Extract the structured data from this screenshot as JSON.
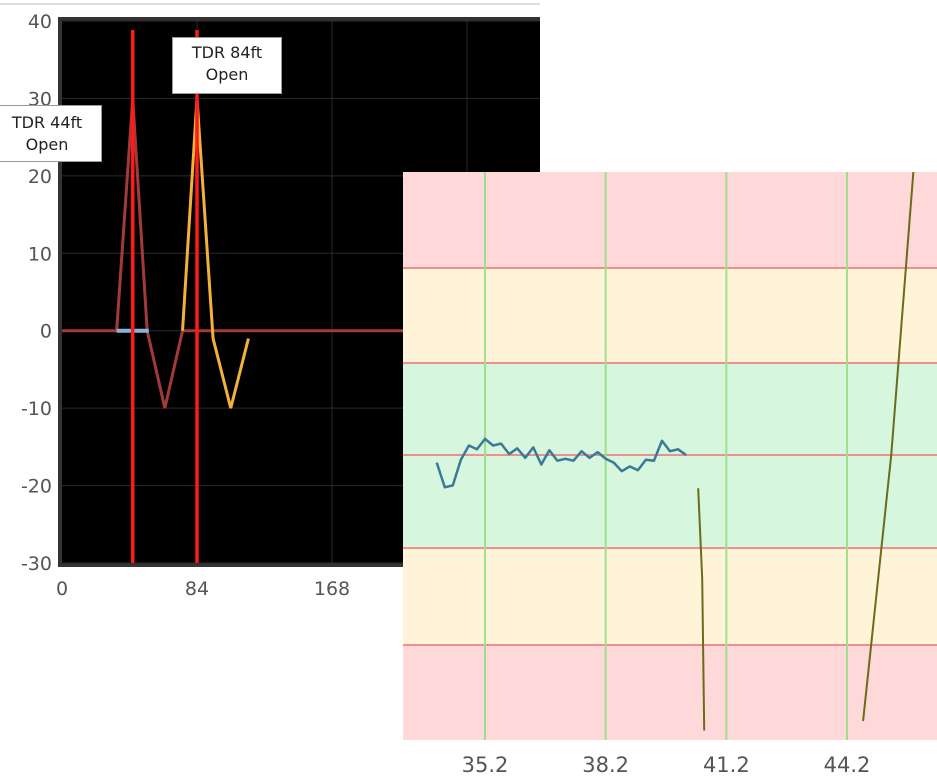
{
  "chart_data": [
    {
      "type": "line",
      "title": "",
      "xlabel": "",
      "ylabel": "",
      "xlim": [
        0,
        250
      ],
      "ylim": [
        -30,
        40
      ],
      "x_ticks": [
        "0",
        "84",
        "168"
      ],
      "y_ticks": [
        "40",
        "30",
        "20",
        "10",
        "0",
        "-10",
        "-20",
        "-30"
      ],
      "grid": true,
      "colors": {
        "background": "#000000",
        "frame": "#333333",
        "grid": "#2a2a2a",
        "marker": "#ff1a1a",
        "baseline": "#8ab4d8"
      },
      "series": [
        {
          "color": "#a33a3a",
          "x": [
            -10,
            34,
            44,
            53,
            64,
            75,
            82,
            250
          ],
          "y": [
            0,
            0,
            30,
            0,
            -10,
            0,
            0,
            0
          ]
        },
        {
          "color": "#f2b13a",
          "x": [
            75,
            84,
            94,
            105,
            116
          ],
          "y": [
            0,
            30,
            -1,
            -10,
            -1
          ]
        },
        {
          "color": "#8ab4d8",
          "x": [
            34,
            54
          ],
          "y": [
            0,
            0
          ]
        }
      ],
      "markers": [
        {
          "x": 44,
          "line1": "TDR 44ft",
          "line2": "Open"
        },
        {
          "x": 84,
          "line1": "TDR 84ft",
          "line2": "Open"
        }
      ]
    },
    {
      "type": "line",
      "title": "",
      "xlabel": "",
      "ylabel": "",
      "xlim": [
        33.6,
        46.9
      ],
      "x_ticks": [
        35.2,
        38.2,
        41.2,
        44.2
      ],
      "x_tick_labels": [
        "35.2",
        "38.2",
        "41.2",
        "44.2"
      ],
      "grid": true,
      "colors": {
        "red_band": "#ffd9d9",
        "yellow_band": "#fff4d8",
        "green_band": "#d6f7dd",
        "band_line": "#ec8f8f",
        "grid_vertical": "#9fe08c",
        "trace": "#3a7a99",
        "ramp": "#6b6b1a"
      },
      "bands": [
        "red",
        "yellow",
        "green",
        "yellow",
        "red"
      ],
      "series": [
        {
          "color": "#3a7a99",
          "x": [
            34.0,
            34.2,
            34.4,
            34.6,
            34.8,
            35.0,
            35.2,
            35.4,
            35.6,
            35.8,
            36.0,
            36.2,
            36.4,
            36.6,
            36.8,
            37.0,
            37.2,
            37.4,
            37.6,
            37.8,
            38.0,
            38.2,
            38.4,
            38.6,
            38.8,
            39.0,
            39.2,
            39.4,
            39.6,
            39.8,
            40.0,
            40.2
          ],
          "y": [
            -0.08,
            -0.34,
            -0.32,
            -0.05,
            0.1,
            0.06,
            0.17,
            0.1,
            0.12,
            0.01,
            0.07,
            -0.03,
            0.08,
            -0.1,
            0.05,
            -0.06,
            -0.04,
            -0.06,
            0.04,
            -0.03,
            0.03,
            -0.04,
            -0.08,
            -0.17,
            -0.12,
            -0.16,
            -0.05,
            -0.06,
            0.15,
            0.04,
            0.06,
            0.0
          ]
        },
        {
          "color": "#6b6b1a",
          "x": [
            40.5,
            40.6,
            40.65
          ],
          "y": [
            -0.35,
            -1.3,
            -2.9
          ]
        },
        {
          "color": "#6b6b1a",
          "x": [
            44.6,
            45.3,
            45.85
          ],
          "y": [
            -2.8,
            0.0,
            3.0
          ]
        }
      ]
    }
  ]
}
